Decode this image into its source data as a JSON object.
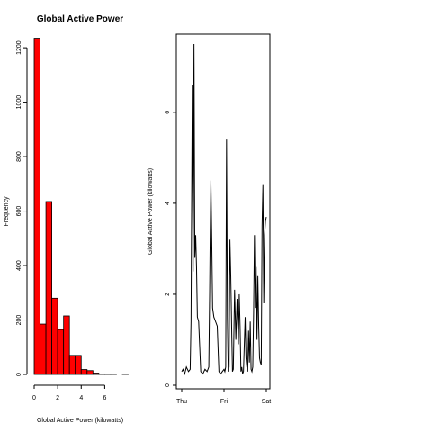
{
  "chart_data": [
    {
      "type": "bar",
      "title": "Global Active Power",
      "xlabel": "Global Active Power (kilowatts)",
      "ylabel": "Frequency",
      "bar_color": "#ff0000",
      "bin_width": 0.5,
      "bin_starts": [
        0,
        0.5,
        1,
        1.5,
        2,
        2.5,
        3,
        3.5,
        4,
        4.5,
        5,
        5.5,
        6,
        6.5,
        7,
        7.5
      ],
      "values": [
        1235,
        185,
        635,
        280,
        165,
        215,
        70,
        70,
        18,
        14,
        5,
        2,
        1,
        1,
        0,
        1
      ],
      "xlim": [
        0,
        7.5
      ],
      "ylim": [
        0,
        1250
      ],
      "xticks": [
        0,
        2,
        4,
        6
      ],
      "xtick_labels": [
        "0",
        "2",
        "4",
        "6"
      ],
      "yticks": [
        0,
        200,
        400,
        600,
        800,
        1000,
        1200
      ],
      "ytick_labels": [
        "0",
        "200",
        "400",
        "600",
        "800",
        "1000",
        "1200"
      ],
      "grid": false
    },
    {
      "type": "line",
      "title": "",
      "xlabel": "",
      "ylabel": "Global Active Power (kilowatts)",
      "line_color": "#000000",
      "x": [
        0,
        0.03,
        0.07,
        0.11,
        0.16,
        0.2,
        0.22,
        0.25,
        0.27,
        0.29,
        0.31,
        0.33,
        0.35,
        0.37,
        0.4,
        0.45,
        0.5,
        0.55,
        0.6,
        0.64,
        0.66,
        0.67,
        0.69,
        0.71,
        0.73,
        0.76,
        0.8,
        0.84,
        0.88,
        0.92,
        0.96,
        1.0,
        1.02,
        1.04,
        1.06,
        1.08,
        1.1,
        1.12,
        1.14,
        1.16,
        1.18,
        1.2,
        1.22,
        1.25,
        1.28,
        1.31,
        1.34,
        1.36,
        1.38,
        1.4,
        1.42,
        1.44,
        1.46,
        1.48,
        1.5,
        1.52,
        1.54,
        1.56,
        1.58,
        1.6,
        1.62,
        1.64,
        1.66,
        1.68,
        1.7,
        1.72,
        1.74,
        1.76,
        1.78,
        1.8,
        1.82,
        1.84,
        1.86,
        1.88,
        1.9,
        1.92,
        1.94,
        1.96,
        1.98,
        2.0
      ],
      "y": [
        0.3,
        0.35,
        0.25,
        0.4,
        0.3,
        0.35,
        1.4,
        6.6,
        2.5,
        7.5,
        2.8,
        3.3,
        2.6,
        1.5,
        1.4,
        0.3,
        0.25,
        0.35,
        0.3,
        0.4,
        2.0,
        3.0,
        4.5,
        3.2,
        1.7,
        1.5,
        1.4,
        1.3,
        0.3,
        0.25,
        0.3,
        0.35,
        0.3,
        0.4,
        5.4,
        1.5,
        0.3,
        0.4,
        3.2,
        2.4,
        1.3,
        0.3,
        0.35,
        2.1,
        1.0,
        1.9,
        0.9,
        2.0,
        1.3,
        0.3,
        0.4,
        0.25,
        0.3,
        0.9,
        1.5,
        0.6,
        0.4,
        0.3,
        1.2,
        0.5,
        1.4,
        0.35,
        0.3,
        0.4,
        1.6,
        3.3,
        1.7,
        2.6,
        1.0,
        2.4,
        1.3,
        0.6,
        0.5,
        0.45,
        3.5,
        4.4,
        1.8,
        3.3,
        3.6,
        3.7
      ],
      "xlim": [
        0,
        2
      ],
      "ylim": [
        0,
        7.6
      ],
      "xticks": [
        0,
        1,
        2
      ],
      "xtick_labels": [
        "Thu",
        "Fri",
        "Sat"
      ],
      "yticks": [
        0,
        2,
        4,
        6
      ],
      "ytick_labels": [
        "0",
        "2",
        "4",
        "6"
      ],
      "grid": false
    }
  ]
}
